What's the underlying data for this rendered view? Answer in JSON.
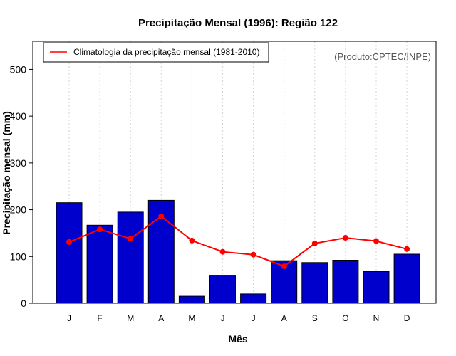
{
  "chart_data": {
    "type": "bar",
    "title": "Precipitação Mensal (1996): Região 122",
    "xlabel": "Mês",
    "ylabel": "Precipitação mensal (mm)",
    "ylim": [
      0,
      560
    ],
    "yticks": [
      0,
      100,
      200,
      300,
      400,
      500
    ],
    "categories": [
      "J",
      "F",
      "M",
      "A",
      "M",
      "J",
      "J",
      "A",
      "S",
      "O",
      "N",
      "D"
    ],
    "series": [
      {
        "name": "Precipitação mensal 1996",
        "kind": "bar",
        "color": "#0000CD",
        "values": [
          215,
          167,
          195,
          220,
          15,
          60,
          20,
          91,
          87,
          92,
          68,
          105
        ]
      },
      {
        "name": "Climatologia da precipitação mensal (1981-2010)",
        "kind": "line",
        "color": "#FF0000",
        "values": [
          131,
          158,
          138,
          186,
          134,
          110,
          104,
          79,
          128,
          140,
          133,
          116
        ]
      }
    ],
    "legend": {
      "position": "top-left",
      "entries": [
        "Climatologia da precipitação mensal (1981-2010)"
      ]
    },
    "annotation": "(Produto:CPTEC/INPE)",
    "grid": "vertical-dotted"
  }
}
